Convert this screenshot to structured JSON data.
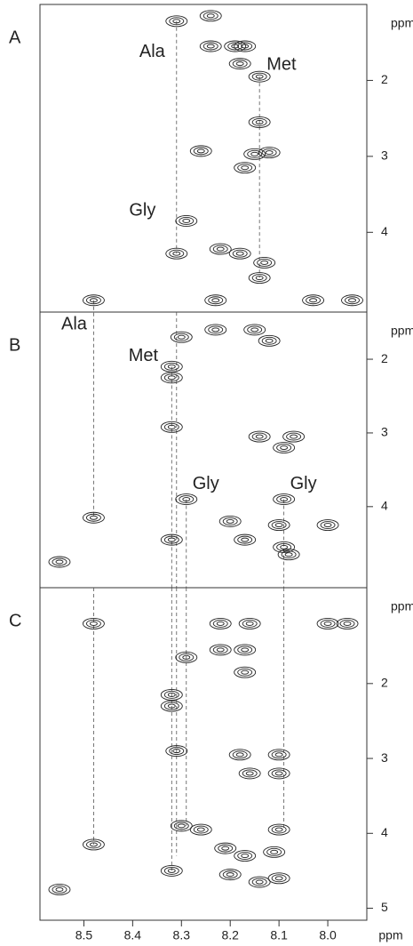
{
  "chart_data": [
    {
      "type": "contour",
      "panel": "A",
      "y_label": "ppm",
      "xlim": [
        8.59,
        7.92
      ],
      "ylim": [
        1.0,
        5.05
      ],
      "yticks": [
        2,
        3,
        4
      ],
      "peaks": {
        "x": [
          8.31,
          8.24,
          8.24,
          8.19,
          8.17,
          8.18,
          8.14,
          8.14,
          8.26,
          8.15,
          8.12,
          8.17,
          8.29,
          8.31,
          8.22,
          8.18,
          8.13,
          8.14
        ],
        "y": [
          1.22,
          1.15,
          1.55,
          1.55,
          1.55,
          1.78,
          1.95,
          2.55,
          2.93,
          2.97,
          2.95,
          3.15,
          3.85,
          4.28,
          4.22,
          4.28,
          4.4,
          4.6
        ]
      },
      "guides": [
        {
          "x": 8.31,
          "y": [
            1.22,
            4.28
          ]
        },
        {
          "x": 8.14,
          "y": [
            1.95,
            4.6
          ]
        }
      ],
      "annotations": [
        {
          "text": "Ala",
          "x": 8.36,
          "y": 1.63
        },
        {
          "text": "Met",
          "x": 8.095,
          "y": 1.8
        },
        {
          "text": "Gly",
          "x": 8.38,
          "y": 3.72
        }
      ]
    },
    {
      "type": "contour",
      "panel": "B",
      "y_label": "ppm",
      "xlim": [
        8.59,
        7.92
      ],
      "ylim": [
        1.36,
        5.1
      ],
      "yticks": [
        2,
        3,
        4
      ],
      "peaks": {
        "x": [
          8.48,
          8.23,
          8.03,
          7.95,
          8.23,
          8.3,
          8.15,
          8.12,
          8.32,
          8.32,
          8.32,
          8.14,
          8.07,
          8.09,
          8.29,
          8.09,
          8.48,
          8.2,
          8.1,
          8.0,
          8.32,
          8.17,
          8.09,
          8.08,
          8.55
        ],
        "y": [
          1.2,
          1.2,
          1.2,
          1.2,
          1.6,
          1.7,
          1.6,
          1.75,
          2.1,
          2.25,
          2.92,
          3.05,
          3.05,
          3.2,
          3.9,
          3.9,
          4.15,
          4.2,
          4.25,
          4.25,
          4.45,
          4.45,
          4.55,
          4.65,
          4.75
        ]
      },
      "guides": [
        {
          "x": 8.48,
          "y": [
            1.2,
            4.15
          ]
        },
        {
          "x": 8.32,
          "y": [
            2.1,
            5.1
          ]
        },
        {
          "x": 8.31,
          "y": [
            1.36,
            5.1
          ]
        },
        {
          "x": 8.29,
          "y": [
            3.9,
            5.1
          ]
        },
        {
          "x": 8.09,
          "y": [
            3.9,
            5.1
          ]
        }
      ],
      "annotations": [
        {
          "text": "Ala",
          "x": 8.52,
          "y": 1.53
        },
        {
          "text": "Met",
          "x": 8.378,
          "y": 1.96
        },
        {
          "text": "Gly",
          "x": 8.25,
          "y": 3.7
        },
        {
          "text": "Gly",
          "x": 8.05,
          "y": 3.7
        }
      ]
    },
    {
      "type": "contour",
      "panel": "C",
      "y_label": "ppm",
      "x_label": "ppm",
      "xlim": [
        8.59,
        7.92
      ],
      "ylim": [
        0.72,
        5.16
      ],
      "yticks": [
        2,
        3,
        4,
        5
      ],
      "xticks": [
        8.5,
        8.4,
        8.3,
        8.2,
        8.1,
        {
          "value": 8,
          "label": "8.0"
        }
      ],
      "peaks": {
        "x": [
          8.48,
          8.22,
          8.16,
          8.0,
          7.96,
          8.22,
          8.17,
          8.29,
          8.17,
          8.32,
          8.32,
          8.31,
          8.1,
          8.18,
          8.16,
          8.1,
          8.3,
          8.26,
          8.1,
          8.48,
          8.21,
          8.17,
          8.11,
          8.32,
          8.2,
          8.1,
          8.14,
          8.55
        ],
        "y": [
          1.2,
          1.2,
          1.2,
          1.2,
          1.2,
          1.55,
          1.55,
          1.65,
          1.85,
          2.15,
          2.3,
          2.9,
          2.95,
          2.95,
          3.2,
          3.2,
          3.9,
          3.95,
          3.95,
          4.15,
          4.2,
          4.3,
          4.25,
          4.5,
          4.55,
          4.6,
          4.65,
          4.75
        ]
      },
      "guides": [
        {
          "x": 8.48,
          "y": [
            0.72,
            4.15
          ]
        },
        {
          "x": 8.32,
          "y": [
            0.72,
            4.5
          ]
        },
        {
          "x": 8.31,
          "y": [
            0.72,
            4.3
          ]
        },
        {
          "x": 8.29,
          "y": [
            0.72,
            3.9
          ]
        },
        {
          "x": 8.09,
          "y": [
            0.72,
            3.95
          ]
        }
      ],
      "annotations": []
    }
  ]
}
